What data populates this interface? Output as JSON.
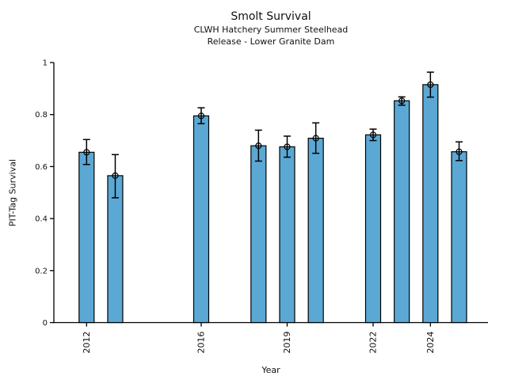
{
  "chart_data": {
    "type": "bar",
    "title": "Smolt Survival",
    "subtitle1": "CLWH Hatchery Summer Steelhead",
    "subtitle2": "Release - Lower Granite Dam",
    "xlabel": "Year",
    "ylabel": "PIT-Tag Survival",
    "ylim": [
      0,
      1
    ],
    "yticks": [
      0,
      0.2,
      0.4,
      0.6,
      0.8,
      1
    ],
    "ytick_labels": [
      "0",
      "0.2",
      "0.4",
      "0.6",
      "0.8",
      "1"
    ],
    "xticks": [
      2012,
      2016,
      2019,
      2022,
      2024
    ],
    "xtick_labels": [
      "2012",
      "2016",
      "2019",
      "2022",
      "2024"
    ],
    "grid": false,
    "legend": "none",
    "bar_color": "#5BA8D4",
    "bar_edge_color": "#000000",
    "errorbar_color": "#000000",
    "marker": "open-circle",
    "points": [
      {
        "year": 2012,
        "value": 0.655,
        "ci_low": 0.608,
        "ci_high": 0.704
      },
      {
        "year": 2013,
        "value": 0.565,
        "ci_low": 0.48,
        "ci_high": 0.646
      },
      {
        "year": 2016,
        "value": 0.795,
        "ci_low": 0.765,
        "ci_high": 0.826
      },
      {
        "year": 2018,
        "value": 0.68,
        "ci_low": 0.621,
        "ci_high": 0.74
      },
      {
        "year": 2019,
        "value": 0.676,
        "ci_low": 0.636,
        "ci_high": 0.717
      },
      {
        "year": 2020,
        "value": 0.709,
        "ci_low": 0.651,
        "ci_high": 0.768
      },
      {
        "year": 2022,
        "value": 0.722,
        "ci_low": 0.7,
        "ci_high": 0.744
      },
      {
        "year": 2023,
        "value": 0.853,
        "ci_low": 0.836,
        "ci_high": 0.868
      },
      {
        "year": 2024,
        "value": 0.915,
        "ci_low": 0.867,
        "ci_high": 0.963
      },
      {
        "year": 2025,
        "value": 0.657,
        "ci_low": 0.623,
        "ci_high": 0.695
      }
    ]
  }
}
